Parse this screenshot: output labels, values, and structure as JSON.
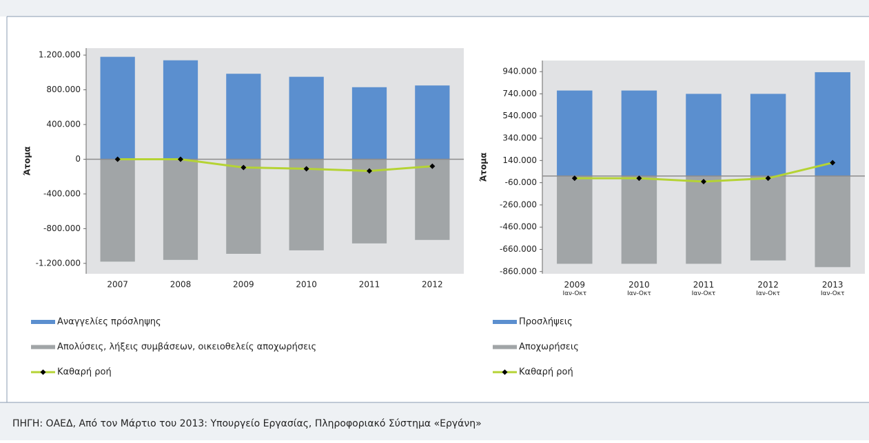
{
  "chart_data": [
    {
      "type": "bar",
      "ylabel": "Άτομα",
      "categories": [
        "2007",
        "2008",
        "2009",
        "2010",
        "2011",
        "2012"
      ],
      "series": [
        {
          "name": "Αναγγελίες πρόσληψης",
          "color": "#5b8fcf",
          "values": [
            1180000,
            1140000,
            985000,
            950000,
            830000,
            850000
          ]
        },
        {
          "name": "Απολύσεις, λήξεις συμβάσεων, οικειοθελείς αποχωρήσεις",
          "color": "#a1a5a7",
          "values": [
            -1180000,
            -1160000,
            -1090000,
            -1050000,
            -970000,
            -930000
          ]
        },
        {
          "name": "Καθαρή ροή",
          "color": "#b5d334",
          "type": "line",
          "values": [
            0,
            0,
            -95000,
            -110000,
            -135000,
            -80000
          ]
        }
      ],
      "ylim": [
        -1320000,
        1280000
      ],
      "yticks": [
        {
          "value": 1200000,
          "label": "1.200.000"
        },
        {
          "value": 800000,
          "label": "800.000"
        },
        {
          "value": 400000,
          "label": "400.000"
        },
        0,
        {
          "value": -400000,
          "label": "-400.000"
        },
        {
          "value": -800000,
          "label": "-800.000"
        },
        {
          "value": -1200000,
          "label": "-1.200.000"
        }
      ]
    },
    {
      "type": "bar",
      "ylabel": "Άτομα",
      "categories": [
        "2009 Ιαν-Οκτ",
        "2010 Ιαν-Οκτ",
        "2011 Ιαν-Οκτ",
        "2012 Ιαν-Οκτ",
        "2013 Ιαν-Οκτ"
      ],
      "series": [
        {
          "name": "Προσλήψεις",
          "color": "#5b8fcf",
          "values": [
            770000,
            770000,
            740000,
            740000,
            935000
          ]
        },
        {
          "name": "Αποχωρήσεις",
          "color": "#a1a5a7",
          "values": [
            -790000,
            -790000,
            -790000,
            -760000,
            -820000
          ]
        },
        {
          "name": "Καθαρή ροή",
          "color": "#b5d334",
          "type": "line",
          "values": [
            -20000,
            -20000,
            -50000,
            -20000,
            120000
          ]
        }
      ],
      "ylim": [
        -880000,
        1040000
      ],
      "yticks": [
        {
          "value": 940000,
          "label": "940.000"
        },
        {
          "value": 740000,
          "label": "740.000"
        },
        {
          "value": 540000,
          "label": "540.000"
        },
        {
          "value": 340000,
          "label": "340.000"
        },
        {
          "value": 140000,
          "label": "140.000"
        },
        {
          "value": -60000,
          "label": "-60.000"
        },
        {
          "value": -260000,
          "label": "-260.000"
        },
        {
          "value": -460000,
          "label": "-460.000"
        },
        {
          "value": -660000,
          "label": "-660.000"
        },
        {
          "value": -860000,
          "label": "-860.000"
        }
      ]
    }
  ],
  "source": "ΠΗΓΗ: ΟΑΕΔ, Από τον Μάρτιο του 2013: Υπουργείο Εργασίας, Πληροφοριακό Σύστημα «Εργάνη»"
}
